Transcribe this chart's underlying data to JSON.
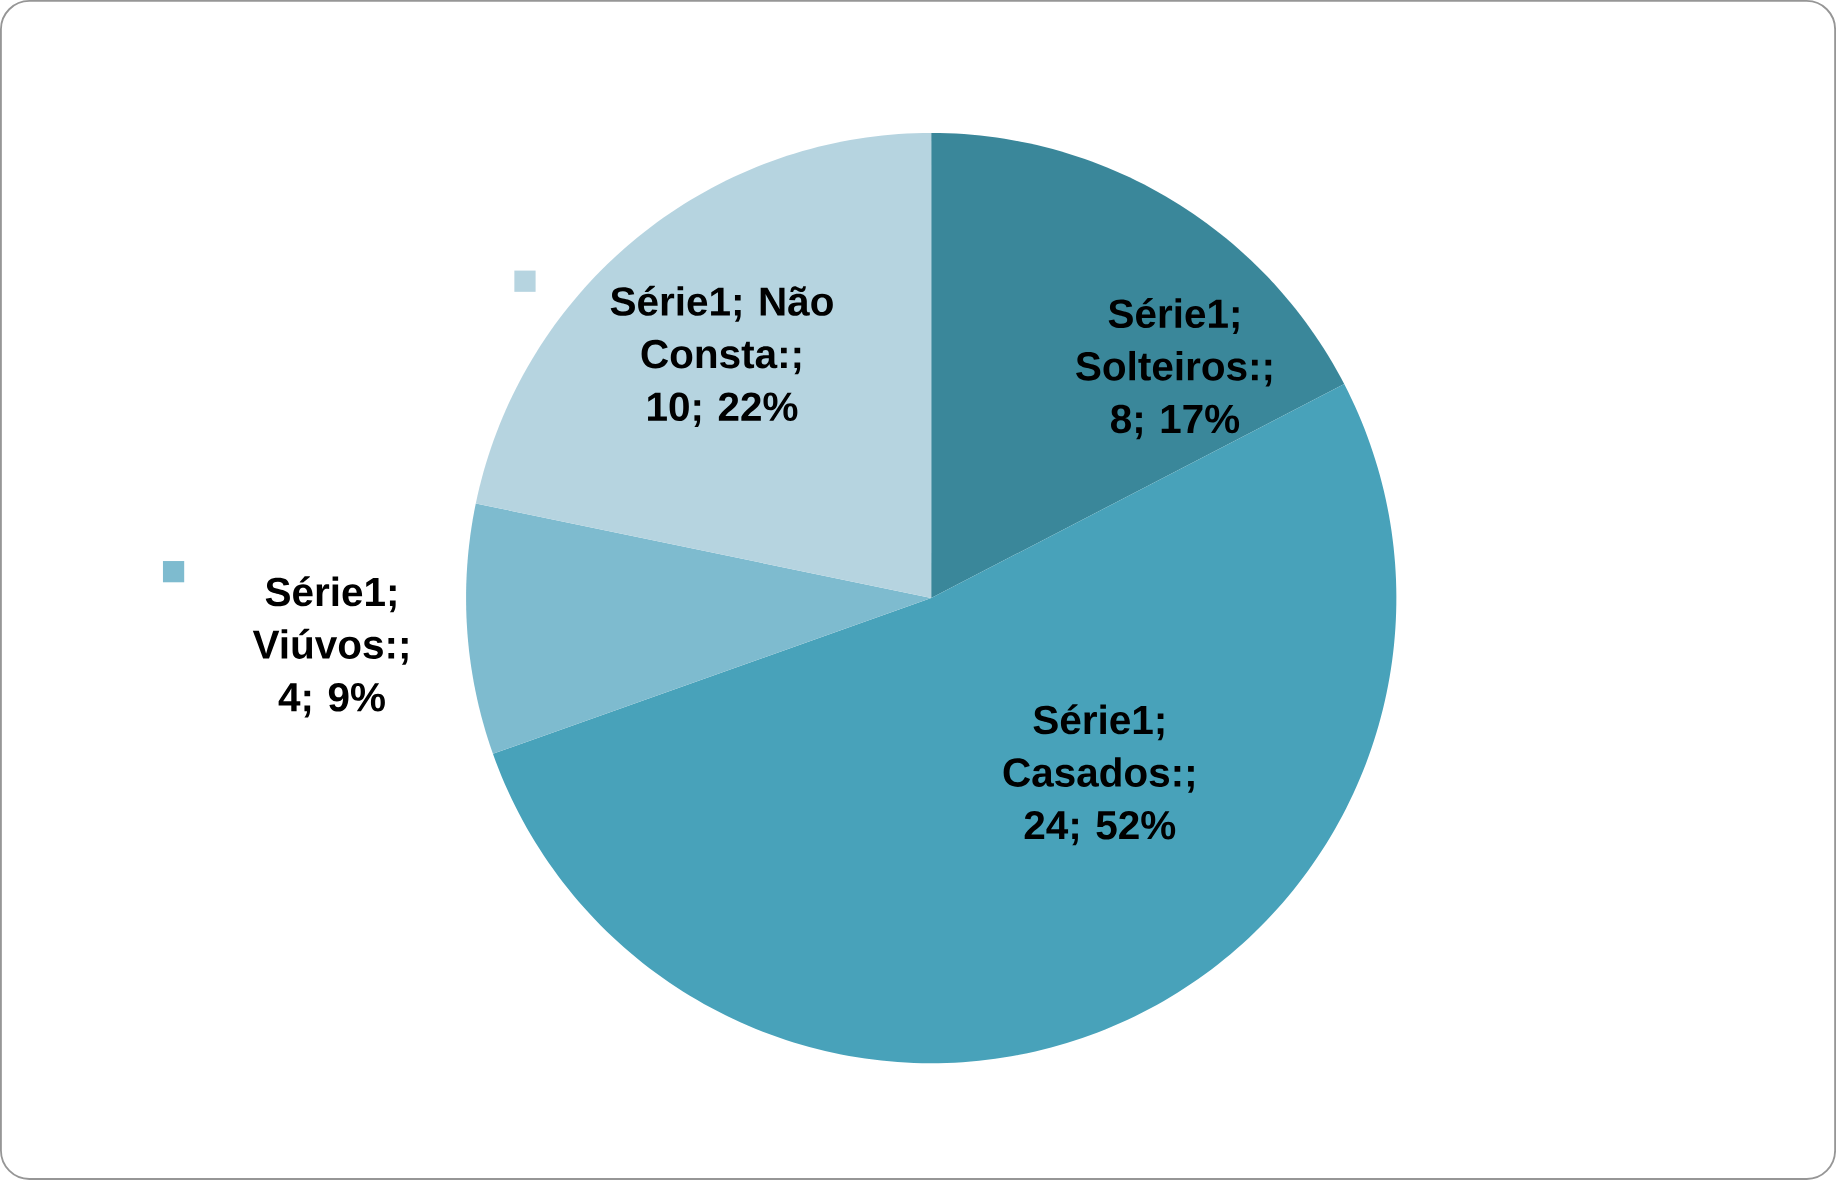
{
  "chart_data": {
    "type": "pie",
    "categories": [
      null,
      null,
      null,
      null
    ],
    "series": [
      {
        "values": [
          8,
          24,
          4,
          10
        ],
        "value_labels": [
          "Série1; Solteiros:; 8; 17%",
          "Série1; Casados:; 24; 52%",
          "Série1; Viúvos:; 4; 9%",
          "Série1; Não Consta:; 10; 22%"
        ]
      }
    ],
    "colors": [
      "#3a879a",
      "#48a2ba",
      "#7ebbcf",
      "#b6d4e0"
    ],
    "legend": false
  }
}
